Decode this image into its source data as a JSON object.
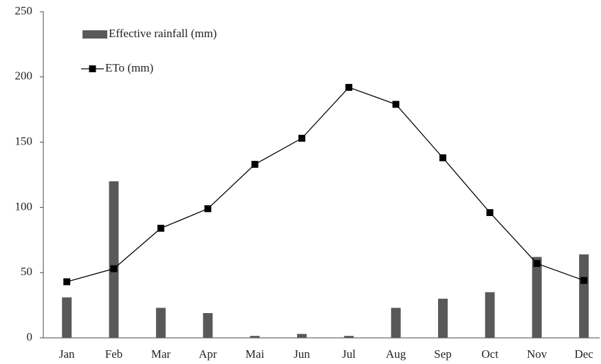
{
  "chart_data": {
    "type": "bar-line",
    "categories": [
      "Jan",
      "Feb",
      "Mar",
      "Apr",
      "Mai",
      "Jun",
      "Jul",
      "Aug",
      "Sep",
      "Oct",
      "Nov",
      "Dec"
    ],
    "series": [
      {
        "name": "Effective rainfall (mm)",
        "type": "bar",
        "color": "#595959",
        "values": [
          31,
          120,
          23,
          19,
          1.5,
          3,
          1.5,
          23,
          30,
          35,
          62,
          64
        ]
      },
      {
        "name": "ETo (mm)",
        "type": "line",
        "color": "#000000",
        "values": [
          43,
          53,
          84,
          99,
          133,
          153,
          192,
          179,
          138,
          96,
          57,
          44
        ]
      }
    ],
    "ylim": [
      0,
      250
    ],
    "yticks": [
      0,
      50,
      100,
      150,
      200,
      250
    ],
    "grid": false
  }
}
